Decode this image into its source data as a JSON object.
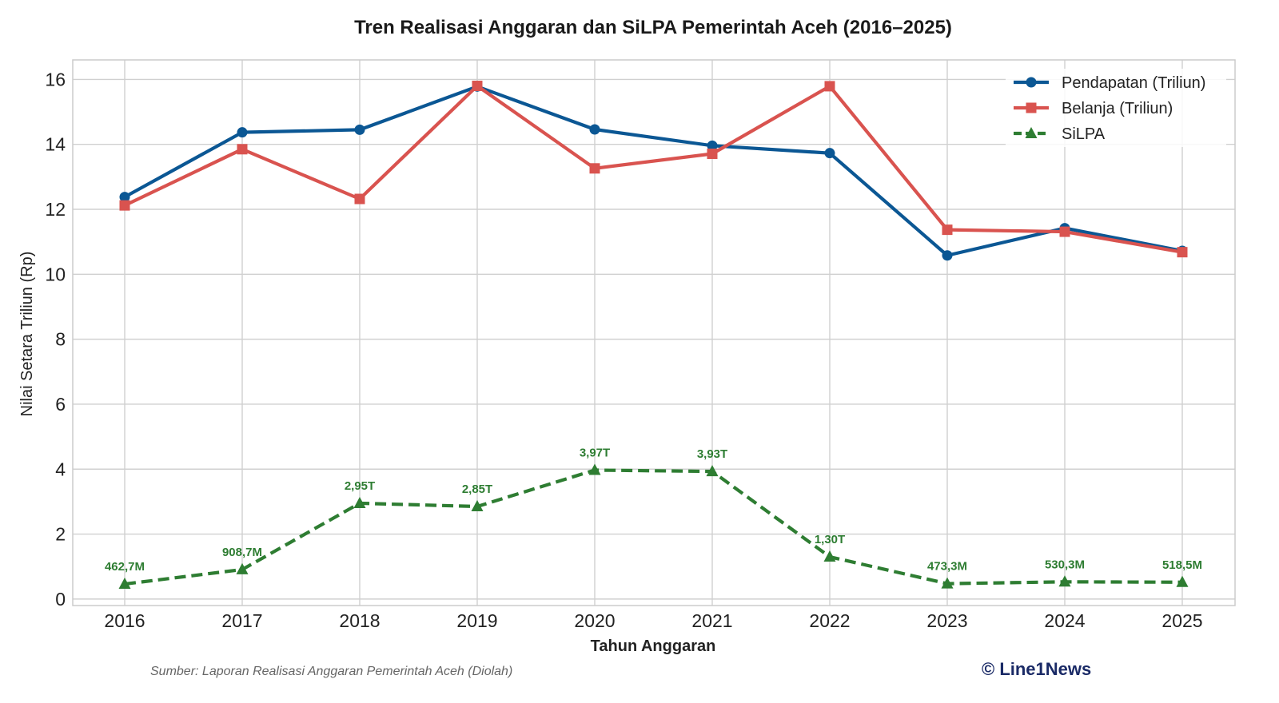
{
  "chart_data": {
    "type": "line",
    "title": "Tren Realisasi Anggaran dan SiLPA Pemerintah Aceh (2016–2025)",
    "xlabel": "Tahun Anggaran",
    "ylabel": "Nilai Setara Triliun (Rp)",
    "ylim": [
      -0.2,
      16.6
    ],
    "yticks": [
      0,
      2,
      4,
      6,
      8,
      10,
      12,
      14,
      16
    ],
    "grid": true,
    "legend_position": "top-right",
    "categories": [
      "2016",
      "2017",
      "2018",
      "2019",
      "2020",
      "2021",
      "2022",
      "2023",
      "2024",
      "2025"
    ],
    "series": [
      {
        "name": "Pendapatan (Triliun)",
        "color": "#0b5794",
        "marker": "circle",
        "dash": "solid",
        "values": [
          12.38,
          14.37,
          14.45,
          15.78,
          14.46,
          13.96,
          13.73,
          10.58,
          11.42,
          10.72
        ]
      },
      {
        "name": "Belanja (Triliun)",
        "color": "#d9534f",
        "marker": "square",
        "dash": "solid",
        "values": [
          12.12,
          13.85,
          12.32,
          15.8,
          13.26,
          13.71,
          15.79,
          11.37,
          11.31,
          10.68
        ]
      },
      {
        "name": "SiLPA",
        "color": "#2e7d32",
        "marker": "triangle",
        "dash": "dashed",
        "values": [
          0.4627,
          0.9087,
          2.95,
          2.85,
          3.97,
          3.93,
          1.3,
          0.4733,
          0.5303,
          0.5185
        ],
        "labels": [
          "462,7M",
          "908,7M",
          "2,95T",
          "2,85T",
          "3,97T",
          "3,93T",
          "1,30T",
          "473,3M",
          "530,3M",
          "518,5M"
        ]
      }
    ]
  },
  "footer": {
    "source": "Sumber: Laporan Realisasi Anggaran Pemerintah Aceh (Diolah)",
    "credit": "© Line1News"
  }
}
